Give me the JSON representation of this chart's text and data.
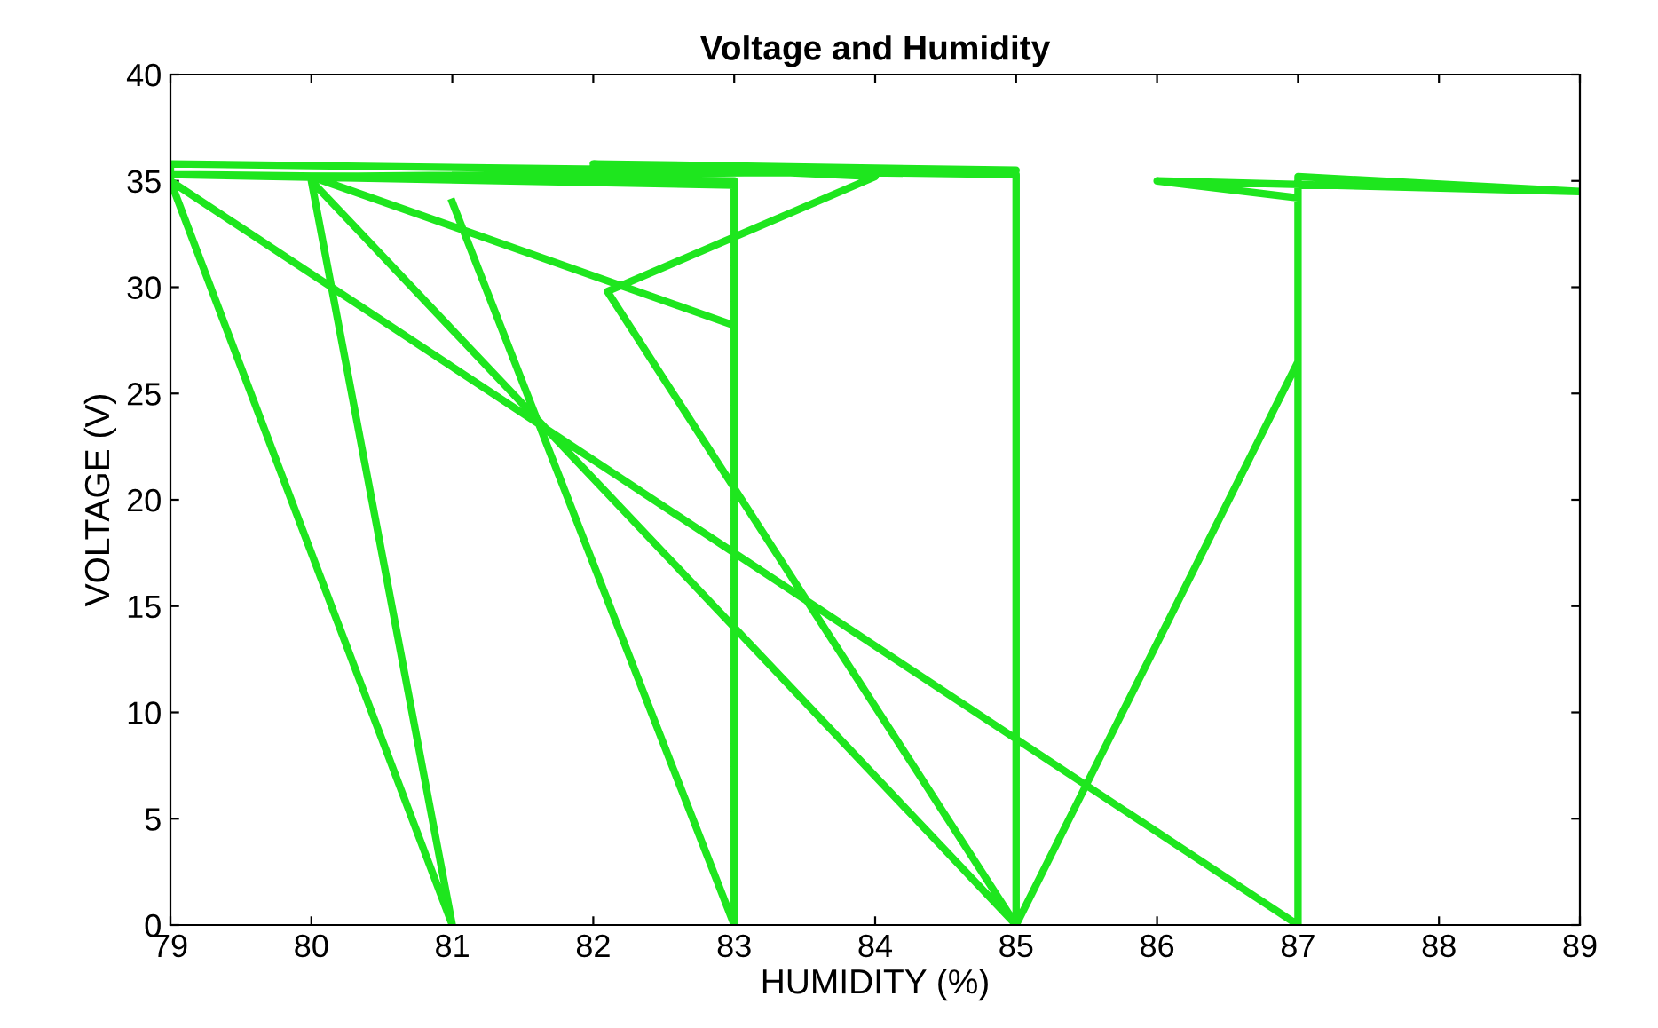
{
  "chart_data": {
    "type": "line",
    "title": "Voltage and Humidity",
    "xlabel": "HUMIDITY (%)",
    "ylabel": "VOLTAGE (V)",
    "x": [
      79,
      81,
      80,
      85,
      85,
      79,
      79,
      87,
      87,
      89,
      86,
      87,
      87,
      85,
      82.1,
      84,
      82,
      85,
      80,
      83,
      83,
      79,
      83,
      83,
      81
    ],
    "series": [
      {
        "color": "#1ee61e",
        "values": [
          35,
          0,
          35,
          0,
          35.3,
          35.8,
          35,
          0,
          35.2,
          34.5,
          35,
          34.2,
          26.5,
          0,
          29.8,
          35.2,
          35.8,
          35.5,
          35.2,
          28.2,
          35,
          35.3,
          34.8,
          0,
          34
        ]
      }
    ],
    "xlim": [
      79,
      89
    ],
    "xticks": [
      79,
      80,
      81,
      82,
      83,
      84,
      85,
      86,
      87,
      88,
      89
    ],
    "ylim": [
      0,
      40
    ],
    "yticks": [
      0,
      5,
      10,
      15,
      20,
      25,
      30,
      35,
      40
    ],
    "grid": false,
    "legend": false,
    "marker": "none",
    "line_style": "solid"
  }
}
